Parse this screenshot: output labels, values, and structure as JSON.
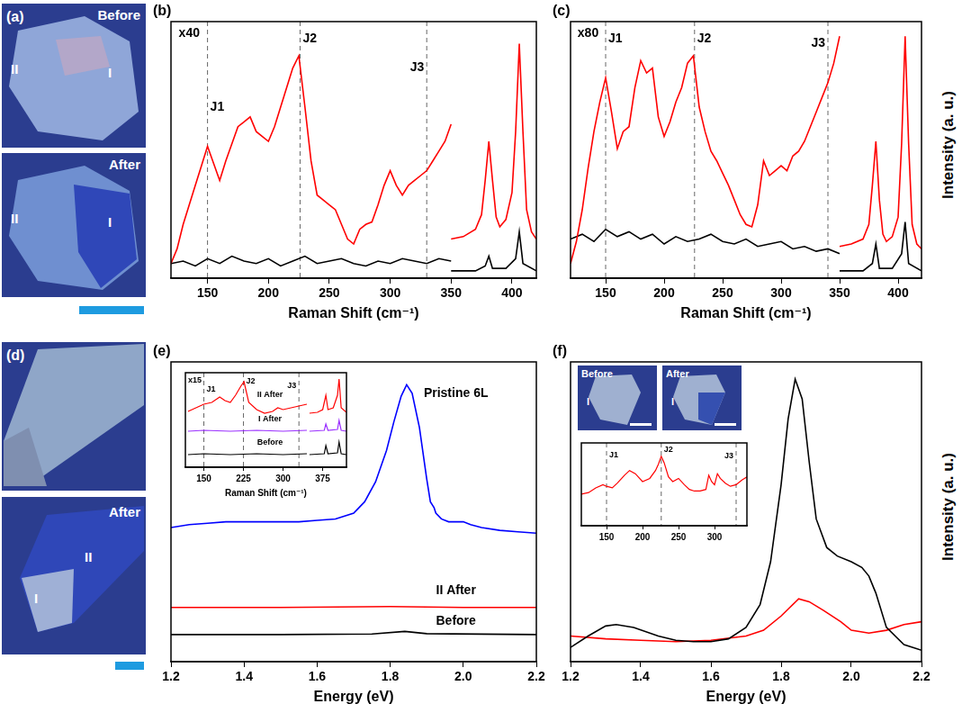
{
  "chart_data": [
    {
      "panel": "(b)",
      "type": "line",
      "x_label": "Raman Shift (cm⁻¹)",
      "xlim": [
        120,
        420
      ],
      "xticks": [
        150,
        200,
        250,
        300,
        350,
        400
      ],
      "ylim": [
        0,
        105
      ],
      "tick_labels": "x",
      "grid": false,
      "series": [
        {
          "color": "#ff0000",
          "x": [
            120,
            125,
            130,
            135,
            140,
            145,
            150,
            155,
            160,
            165,
            170,
            175,
            180,
            185,
            190,
            195,
            200,
            205,
            210,
            215,
            220,
            225,
            230,
            235,
            240,
            245,
            250,
            255,
            260,
            265,
            270,
            275,
            280,
            285,
            290,
            295,
            300,
            305,
            310,
            315,
            320,
            325,
            330,
            335,
            340,
            345,
            350,
            350,
            350,
            360,
            370,
            375,
            378,
            381,
            384,
            387,
            390,
            395,
            400,
            403,
            406,
            409,
            412,
            416,
            420
          ],
          "values": [
            6,
            12,
            22,
            30,
            38,
            46,
            54,
            47,
            40,
            48,
            55,
            62,
            64,
            66,
            60,
            58,
            56,
            62,
            70,
            78,
            86,
            91,
            70,
            48,
            34,
            32,
            30,
            28,
            22,
            16,
            14,
            20,
            22,
            23,
            30,
            38,
            44,
            38,
            34,
            38,
            40,
            42,
            44,
            48,
            52,
            56,
            63,
            null,
            16,
            17,
            20,
            26,
            40,
            56,
            40,
            25,
            21,
            24,
            35,
            60,
            96,
            60,
            28,
            19,
            16
          ]
        },
        {
          "color": "#000000",
          "x": [
            120,
            130,
            140,
            150,
            160,
            170,
            180,
            190,
            200,
            210,
            220,
            230,
            240,
            250,
            260,
            270,
            280,
            290,
            300,
            310,
            320,
            330,
            340,
            350,
            350,
            350,
            370,
            378,
            381,
            384,
            395,
            403,
            406,
            409,
            420
          ],
          "values": [
            6,
            7,
            5,
            8,
            6,
            9,
            7,
            6,
            8,
            5,
            7,
            9,
            6,
            7,
            8,
            6,
            5,
            7,
            6,
            8,
            7,
            6,
            8,
            7,
            null,
            3,
            3,
            5,
            9,
            4,
            4,
            8,
            19,
            6,
            3
          ]
        }
      ],
      "annotations": [
        {
          "text": "x40",
          "x": 135,
          "y": 100
        },
        {
          "text": "J1",
          "x": 150,
          "y": 70,
          "line_style": "dashed"
        },
        {
          "text": "J2",
          "x": 226,
          "y": 98,
          "line_style": "dashed"
        },
        {
          "text": "J3",
          "x": 330,
          "y": 86,
          "line_style": "dashed"
        }
      ]
    },
    {
      "panel": "(c)",
      "type": "line",
      "x_label": "Raman Shift (cm⁻¹)",
      "y_label": "Intensity (a. u.)",
      "xlim": [
        120,
        420
      ],
      "xticks": [
        150,
        200,
        250,
        300,
        350,
        400
      ],
      "ylim": [
        0,
        105
      ],
      "tick_labels": "x",
      "grid": false,
      "series": [
        {
          "color": "#ff0000",
          "x": [
            120,
            125,
            130,
            135,
            140,
            145,
            150,
            155,
            160,
            165,
            170,
            175,
            180,
            185,
            190,
            195,
            200,
            205,
            210,
            215,
            220,
            225,
            230,
            235,
            240,
            245,
            250,
            255,
            260,
            265,
            270,
            275,
            280,
            285,
            290,
            295,
            300,
            305,
            310,
            315,
            320,
            325,
            330,
            335,
            340,
            345,
            350,
            350,
            350,
            360,
            370,
            375,
            378,
            381,
            384,
            387,
            390,
            395,
            400,
            403,
            406,
            409,
            412,
            416,
            420
          ],
          "values": [
            6,
            15,
            28,
            45,
            60,
            72,
            82,
            68,
            53,
            60,
            62,
            78,
            89,
            84,
            86,
            66,
            58,
            64,
            72,
            78,
            88,
            91,
            70,
            60,
            52,
            48,
            43,
            38,
            32,
            26,
            22,
            21,
            30,
            48,
            42,
            44,
            46,
            44,
            50,
            52,
            56,
            62,
            68,
            74,
            80,
            88,
            99,
            null,
            13,
            14,
            16,
            22,
            38,
            56,
            32,
            18,
            15,
            17,
            25,
            55,
            99,
            55,
            22,
            14,
            12
          ]
        },
        {
          "color": "#000000",
          "x": [
            120,
            130,
            140,
            150,
            160,
            170,
            180,
            190,
            200,
            210,
            220,
            230,
            240,
            250,
            260,
            270,
            280,
            290,
            300,
            310,
            320,
            330,
            340,
            350,
            350,
            350,
            370,
            378,
            381,
            384,
            395,
            403,
            406,
            409,
            420
          ],
          "values": [
            16,
            18,
            15,
            20,
            17,
            19,
            16,
            18,
            14,
            17,
            15,
            16,
            18,
            15,
            14,
            16,
            13,
            14,
            15,
            12,
            13,
            11,
            12,
            10,
            null,
            3,
            3,
            6,
            14,
            4,
            4,
            10,
            23,
            6,
            3
          ]
        }
      ],
      "annotations": [
        {
          "text": "x80",
          "x": 135,
          "y": 100
        },
        {
          "text": "J1",
          "x": 150,
          "y": 98,
          "line_style": "dashed"
        },
        {
          "text": "J2",
          "x": 226,
          "y": 98,
          "line_style": "dashed"
        },
        {
          "text": "J3",
          "x": 340,
          "y": 96,
          "line_style": "dashed"
        }
      ]
    },
    {
      "panel": "(e)",
      "type": "line",
      "x_label": "Energy (eV)",
      "xlim": [
        1.2,
        2.2
      ],
      "xticks": [
        1.2,
        1.4,
        1.6,
        1.8,
        {
          "value": 2,
          "label": "2.0"
        },
        2.2
      ],
      "ylim": [
        0,
        105
      ],
      "tick_labels": "x",
      "grid": false,
      "series": [
        {
          "color": "#0000ff",
          "x": [
            1.2,
            1.25,
            1.3,
            1.35,
            1.4,
            1.45,
            1.5,
            1.55,
            1.6,
            1.65,
            1.7,
            1.73,
            1.76,
            1.79,
            1.81,
            1.83,
            1.845,
            1.86,
            1.88,
            1.9,
            1.91,
            1.92,
            1.925,
            1.94,
            1.96,
            2.0,
            2.02,
            2.05,
            2.1,
            2.15,
            2.2
          ],
          "values": [
            47,
            48,
            48.5,
            49,
            49,
            49,
            49,
            49,
            49.5,
            50,
            52,
            56,
            63,
            74,
            84,
            93,
            97,
            94,
            82,
            64,
            56,
            54,
            52,
            50,
            49,
            49,
            48,
            47,
            46,
            45.5,
            45
          ]
        },
        {
          "color": "#ff0000",
          "x": [
            1.2,
            1.5,
            1.8,
            2.0,
            2.2
          ],
          "values": [
            19,
            19,
            19.3,
            19,
            19
          ]
        },
        {
          "color": "#000000",
          "x": [
            1.2,
            1.5,
            1.75,
            1.84,
            1.9,
            2.2
          ],
          "values": [
            9.5,
            9.5,
            9.7,
            10.6,
            9.8,
            9.5
          ]
        }
      ],
      "annotations": [
        {
          "text": "Pristine 6L",
          "x": 1.98,
          "y": 94
        },
        {
          "text": "II After",
          "x": 1.98,
          "y": 25
        },
        {
          "text": "Before",
          "x": 1.98,
          "y": 14
        }
      ]
    },
    {
      "type": "line",
      "x_label": "Raman Shift (cm⁻¹)",
      "xlim": [
        115,
        420
      ],
      "xticks": [
        150,
        225,
        300,
        375
      ],
      "ylim": [
        0,
        105
      ],
      "tick_labels": "x",
      "grid": false,
      "series": [
        {
          "color": "#ff0000",
          "x": [
            120,
            135,
            150,
            165,
            180,
            190,
            200,
            210,
            220,
            226,
            235,
            250,
            265,
            280,
            290,
            300,
            315,
            330,
            345,
            350,
            350,
            365,
            375,
            378,
            381,
            385,
            395,
            403,
            406,
            410,
            420
          ],
          "values": [
            62,
            66,
            70,
            72,
            78,
            74,
            72,
            80,
            90,
            95,
            72,
            64,
            60,
            62,
            66,
            64,
            66,
            68,
            70,
            null,
            60,
            61,
            64,
            72,
            80,
            64,
            66,
            80,
            98,
            66,
            61
          ]
        },
        {
          "color": "#9b30ff",
          "x": [
            120,
            150,
            200,
            250,
            300,
            345,
            350,
            350,
            378,
            381,
            385,
            403,
            406,
            410,
            420
          ],
          "values": [
            40,
            41,
            40,
            41,
            40,
            41,
            null,
            40,
            41,
            48,
            41,
            42,
            52,
            41,
            40
          ]
        },
        {
          "color": "#000000",
          "x": [
            120,
            150,
            200,
            250,
            300,
            345,
            350,
            350,
            378,
            381,
            385,
            403,
            406,
            410,
            420
          ],
          "values": [
            14,
            15,
            14,
            15,
            14,
            15,
            null,
            14,
            15,
            24,
            15,
            16,
            28,
            15,
            14
          ]
        }
      ],
      "annotations": [
        {
          "text": "x15",
          "x": 133,
          "y": 96
        },
        {
          "text": "J1",
          "x": 150,
          "y": 86,
          "line_style": "dashed"
        },
        {
          "text": "J2",
          "x": 225,
          "y": 95,
          "line_style": "dashed"
        },
        {
          "text": "J3",
          "x": 330,
          "y": 90,
          "line_style": "dashed"
        },
        {
          "text": "II After",
          "x": 275,
          "y": 80
        },
        {
          "text": "I After",
          "x": 275,
          "y": 53
        },
        {
          "text": "Before",
          "x": 275,
          "y": 27
        }
      ]
    },
    {
      "panel": "(f)",
      "type": "line",
      "x_label": "Energy (eV)",
      "y_label": "Intensity (a. u.)",
      "xlim": [
        1.2,
        2.2
      ],
      "xticks": [
        1.2,
        1.4,
        1.6,
        1.8,
        {
          "value": 2,
          "label": "2.0"
        },
        2.2
      ],
      "ylim": [
        0,
        105
      ],
      "tick_labels": "x",
      "grid": false,
      "series": [
        {
          "color": "#000000",
          "x": [
            1.2,
            1.25,
            1.3,
            1.33,
            1.38,
            1.45,
            1.5,
            1.55,
            1.6,
            1.65,
            1.7,
            1.74,
            1.77,
            1.8,
            1.82,
            1.84,
            1.86,
            1.88,
            1.9,
            1.93,
            1.96,
            2.0,
            2.03,
            2.05,
            2.07,
            2.1,
            2.15,
            2.2
          ],
          "values": [
            5,
            9,
            12.5,
            13,
            12,
            9,
            7.5,
            7,
            7,
            8,
            12,
            20,
            35,
            62,
            85,
            99,
            92,
            70,
            50,
            40,
            37,
            35,
            33,
            30,
            24,
            12,
            6,
            4
          ]
        },
        {
          "color": "#ff0000",
          "x": [
            1.2,
            1.3,
            1.4,
            1.5,
            1.6,
            1.7,
            1.75,
            1.8,
            1.85,
            1.88,
            1.92,
            1.97,
            2.0,
            2.05,
            2.1,
            2.15,
            2.2
          ],
          "values": [
            9,
            8,
            7.5,
            7,
            7.5,
            9,
            11,
            16,
            22,
            21,
            18,
            14,
            11,
            10,
            11,
            13,
            14
          ]
        }
      ]
    },
    {
      "type": "line",
      "xlim": [
        115,
        345
      ],
      "xticks": [
        150,
        200,
        250,
        300
      ],
      "ylim": [
        0,
        105
      ],
      "tick_labels": "x",
      "grid": false,
      "series": [
        {
          "color": "#ff0000",
          "x": [
            115,
            125,
            135,
            145,
            150,
            158,
            165,
            175,
            182,
            190,
            200,
            210,
            218,
            222,
            226,
            230,
            236,
            242,
            250,
            258,
            265,
            272,
            280,
            288,
            292,
            296,
            300,
            304,
            308,
            315,
            322,
            330,
            338,
            345
          ],
          "values": [
            40,
            42,
            48,
            52,
            50,
            48,
            54,
            64,
            70,
            66,
            56,
            60,
            70,
            78,
            88,
            80,
            62,
            56,
            60,
            52,
            46,
            44,
            44,
            46,
            64,
            56,
            52,
            66,
            60,
            54,
            50,
            52,
            58,
            62
          ]
        }
      ],
      "annotations": [
        {
          "text": "J1",
          "x": 150,
          "y": 90,
          "line_style": "dashed"
        },
        {
          "text": "J2",
          "x": 226,
          "y": 96,
          "line_style": "dashed"
        },
        {
          "text": "J3",
          "x": 330,
          "y": 88,
          "line_style": "dashed"
        }
      ]
    }
  ],
  "images": [
    {
      "panel": "(a)",
      "frames": [
        {
          "title": "Before",
          "labels": [
            "II",
            "I"
          ]
        },
        {
          "title": "After",
          "labels": [
            "II",
            "I"
          ]
        }
      ]
    },
    {
      "panel": "(d)",
      "frames": [
        {},
        {
          "title": "After",
          "labels": [
            "II",
            "I"
          ]
        }
      ]
    },
    {
      "frames": [
        {
          "title": "Before",
          "labels": [
            "I"
          ]
        },
        {
          "title": "After",
          "labels": [
            "I"
          ]
        }
      ]
    }
  ]
}
